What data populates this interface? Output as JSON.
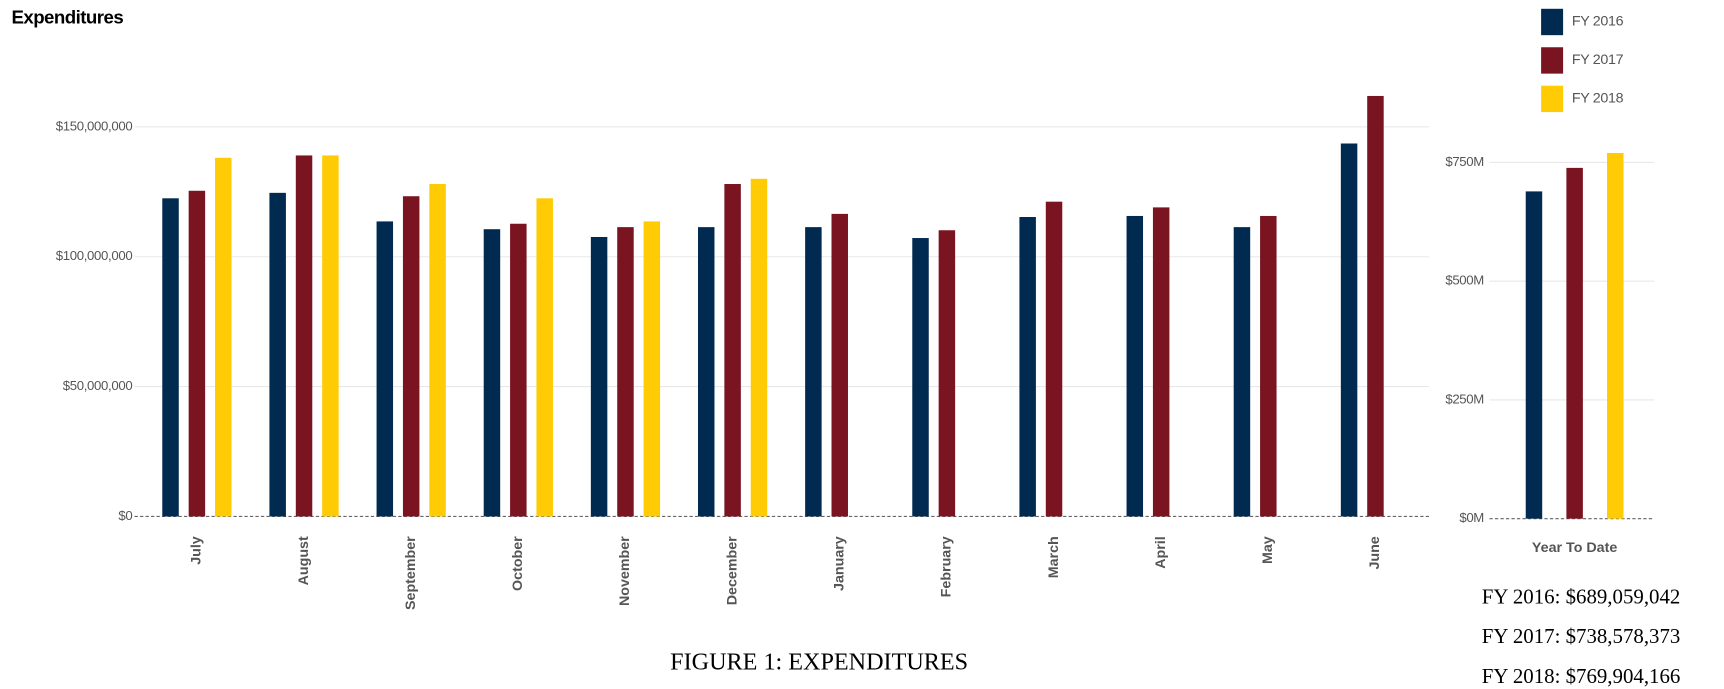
{
  "title": "Expenditures",
  "caption": "FIGURE 1: EXPENDITURES",
  "chart_data": [
    {
      "type": "bar",
      "categories": [
        "July",
        "August",
        "September",
        "October",
        "November",
        "December",
        "January",
        "February",
        "March",
        "April",
        "May",
        "June"
      ],
      "series": [
        {
          "name": "FY 2016",
          "color": "#002a4f",
          "values": [
            122500000,
            124600000,
            113600000,
            110600000,
            107600000,
            111400000,
            111400000,
            107200000,
            115300000,
            115700000,
            111400000,
            143600000
          ]
        },
        {
          "name": "FY 2017",
          "color": "#7b1421",
          "values": [
            125400000,
            139000000,
            123300000,
            112700000,
            111400000,
            128000000,
            116500000,
            110200000,
            121200000,
            119000000,
            115700000,
            161900000
          ]
        },
        {
          "name": "FY 2018",
          "color": "#ffcb05",
          "values": [
            138100000,
            139000000,
            128000000,
            122500000,
            113600000,
            130000000,
            null,
            null,
            null,
            null,
            null,
            null
          ]
        }
      ],
      "ylim": [
        0,
        165000000
      ],
      "yticks": [
        {
          "value": 0,
          "label": "$0"
        },
        {
          "value": 50000000,
          "label": "$50,000,000"
        },
        {
          "value": 100000000,
          "label": "$100,000,000"
        },
        {
          "value": 150000000,
          "label": "$150,000,000"
        }
      ],
      "grid": true,
      "legend": "top-right"
    },
    {
      "type": "bar",
      "categories": [
        "Year To Date"
      ],
      "series": [
        {
          "color": "#002a4f",
          "values": [
            689059042
          ],
          "value_labels": [
            "FY 2016: $689,059,042"
          ]
        },
        {
          "color": "#7b1421",
          "values": [
            738578373
          ],
          "value_labels": [
            "FY 2017: $738,578,373"
          ]
        },
        {
          "color": "#ffcb05",
          "values": [
            769904166
          ],
          "value_labels": [
            "FY 2018: $769,904,166"
          ]
        }
      ],
      "ylim": [
        0,
        900000000
      ],
      "yticks": [
        {
          "value": 0,
          "label": "$0M"
        },
        {
          "value": 250000000,
          "label": "$250M"
        },
        {
          "value": 500000000,
          "label": "$500M"
        },
        {
          "value": 750000000,
          "label": "$750M"
        }
      ],
      "grid": true
    }
  ]
}
